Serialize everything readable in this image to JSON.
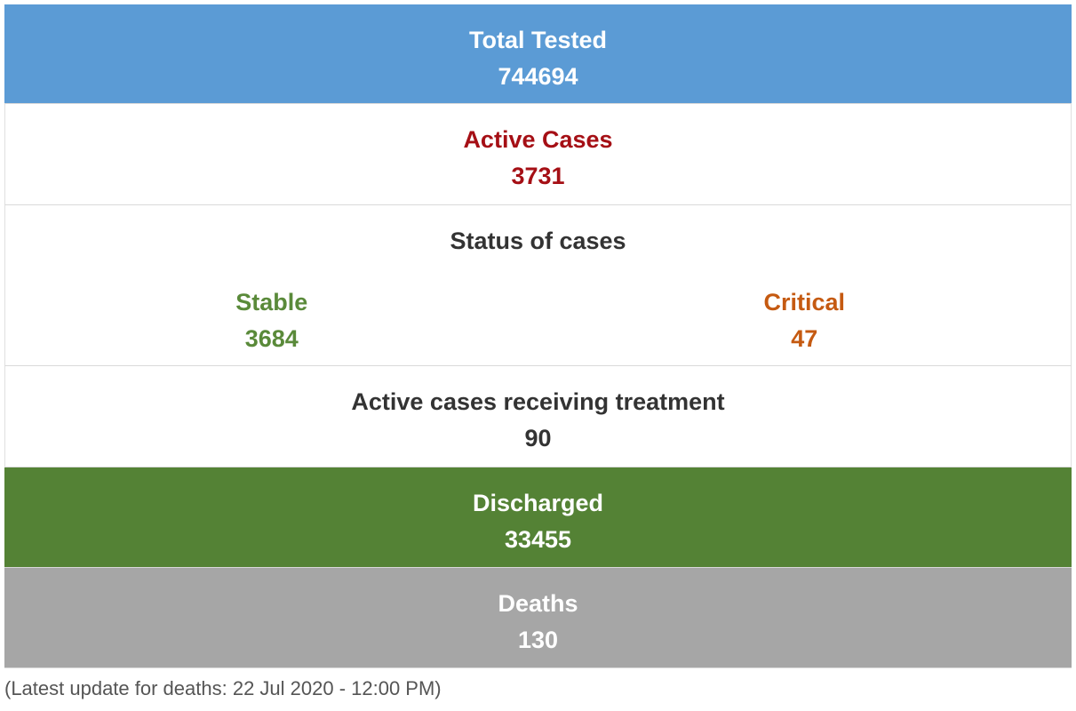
{
  "total_tested": {
    "label": "Total Tested",
    "value": "744694",
    "bg_color": "#5b9bd5"
  },
  "active_cases": {
    "label": "Active Cases",
    "value": "3731",
    "color": "#a50f15"
  },
  "status": {
    "title": "Status of cases",
    "stable": {
      "label": "Stable",
      "value": "3684",
      "color": "#5a8a3a"
    },
    "critical": {
      "label": "Critical",
      "value": "47",
      "color": "#c55a11"
    }
  },
  "treatment": {
    "label": "Active cases receiving treatment",
    "value": "90"
  },
  "discharged": {
    "label": "Discharged",
    "value": "33455",
    "bg_color": "#548235"
  },
  "deaths": {
    "label": "Deaths",
    "value": "130",
    "bg_color": "#a6a6a6"
  },
  "footnote": "(Latest update for deaths: 22 Jul 2020 - 12:00 PM)"
}
